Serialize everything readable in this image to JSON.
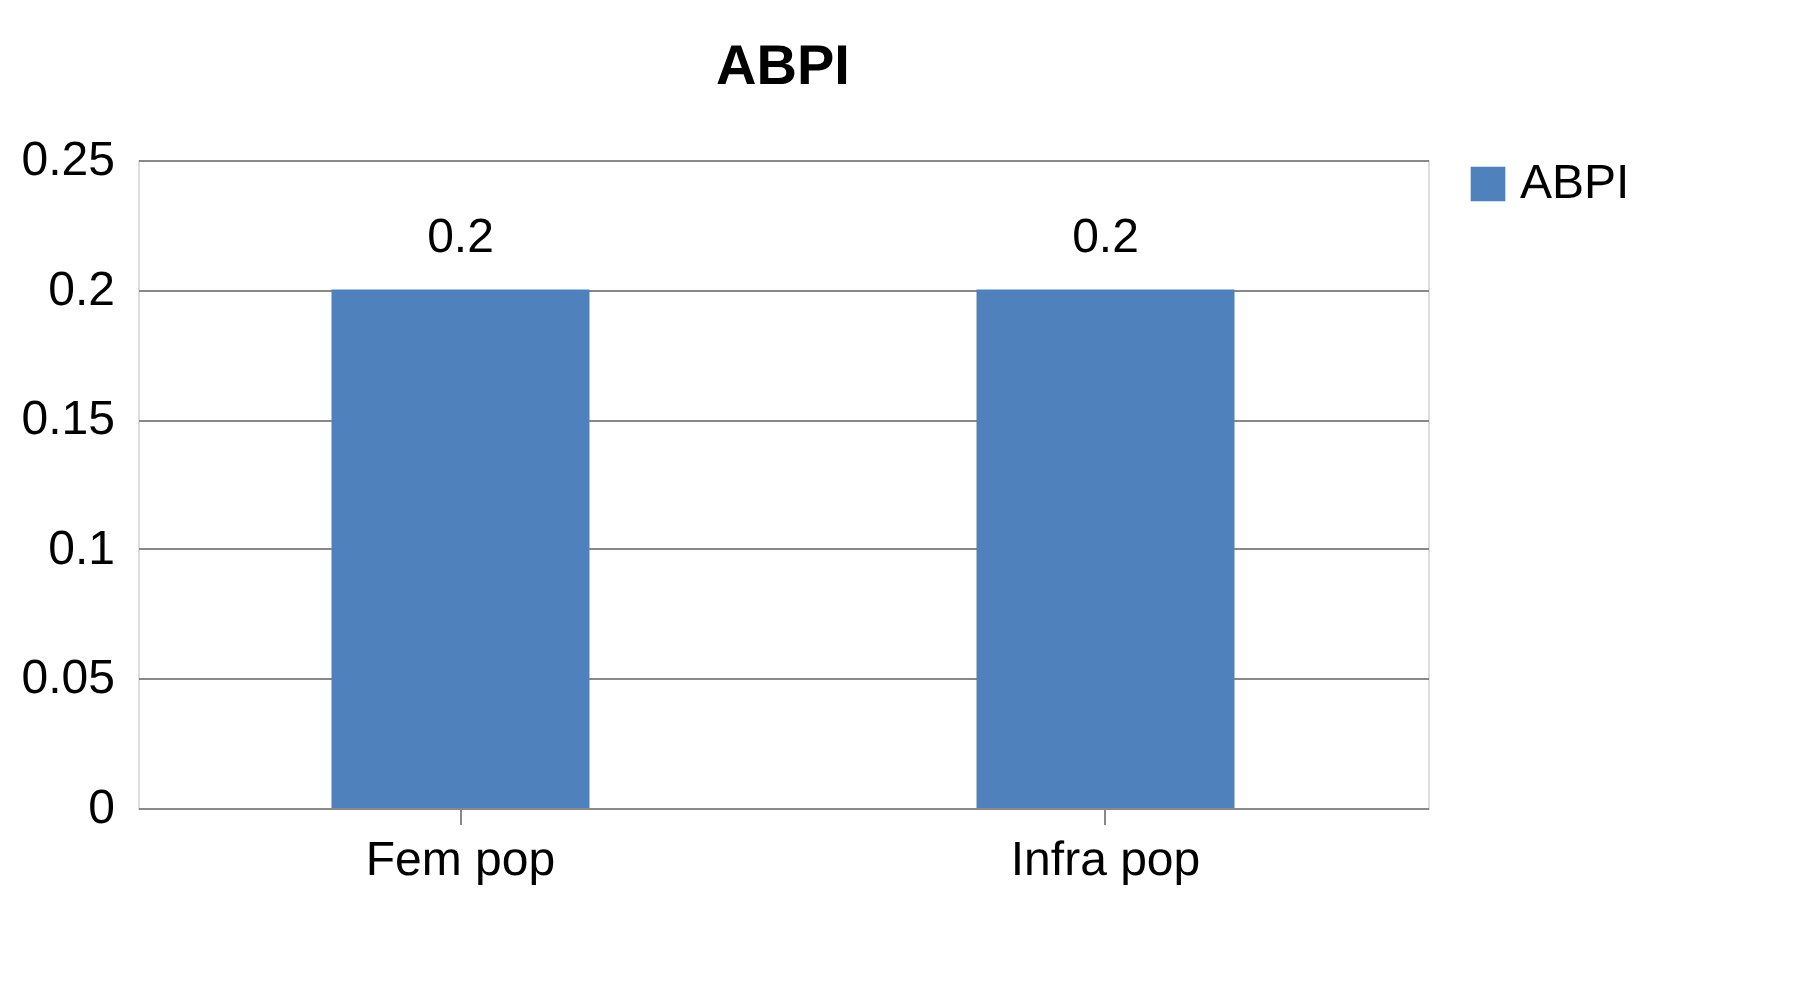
{
  "chart_data": {
    "type": "bar",
    "title": "ABPI",
    "categories": [
      "Fem pop",
      "Infra pop"
    ],
    "series": [
      {
        "name": "ABPI",
        "color": "#4f81bd",
        "values": [
          0.2,
          0.2
        ]
      }
    ],
    "ylim": [
      0,
      0.25
    ],
    "yticks": [
      0,
      0.05,
      0.1,
      0.15,
      0.2,
      0.25
    ],
    "grid": "y",
    "legend": "right",
    "data_labels": true
  }
}
